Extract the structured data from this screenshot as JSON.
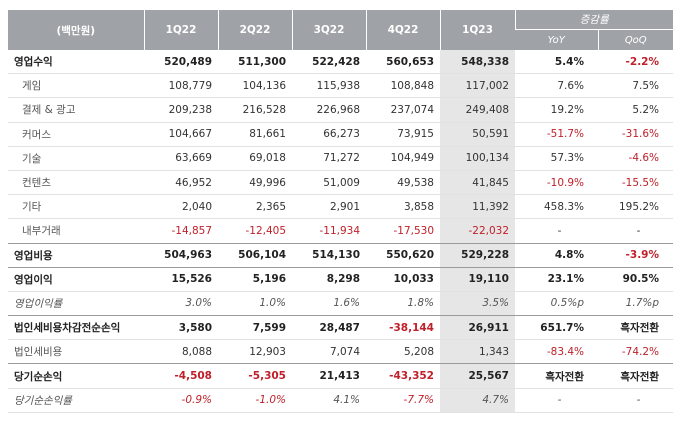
{
  "header": {
    "unit_label": "(백만원)",
    "quarters": [
      "1Q22",
      "2Q22",
      "3Q22",
      "4Q22",
      "1Q23"
    ],
    "change_label": "증감률",
    "yoy_label": "YoY",
    "qoq_label": "QoQ"
  },
  "rows": [
    {
      "name": "영업수익",
      "v": [
        "520,489",
        "511,300",
        "522,428",
        "560,653",
        "548,338"
      ],
      "yoy": "5.4%",
      "qoq": "-2.2%"
    },
    {
      "name": "게임",
      "v": [
        "108,779",
        "104,136",
        "115,938",
        "108,848",
        "117,002"
      ],
      "yoy": "7.6%",
      "qoq": "7.5%"
    },
    {
      "name": "결제 & 광고",
      "v": [
        "209,238",
        "216,528",
        "226,968",
        "237,074",
        "249,408"
      ],
      "yoy": "19.2%",
      "qoq": "5.2%"
    },
    {
      "name": "커머스",
      "v": [
        "104,667",
        "81,661",
        "66,273",
        "73,915",
        "50,591"
      ],
      "yoy": "-51.7%",
      "qoq": "-31.6%"
    },
    {
      "name": "기술",
      "v": [
        "63,669",
        "69,018",
        "71,272",
        "104,949",
        "100,134"
      ],
      "yoy": "57.3%",
      "qoq": "-4.6%"
    },
    {
      "name": "컨텐츠",
      "v": [
        "46,952",
        "49,996",
        "51,009",
        "49,538",
        "41,845"
      ],
      "yoy": "-10.9%",
      "qoq": "-15.5%"
    },
    {
      "name": "기타",
      "v": [
        "2,040",
        "2,365",
        "2,901",
        "3,858",
        "11,392"
      ],
      "yoy": "458.3%",
      "qoq": "195.2%"
    },
    {
      "name": "내부거래",
      "v": [
        "-14,857",
        "-12,405",
        "-11,934",
        "-17,530",
        "-22,032"
      ],
      "yoy": "-",
      "qoq": "-"
    },
    {
      "name": "영업비용",
      "v": [
        "504,963",
        "506,104",
        "514,130",
        "550,620",
        "529,228"
      ],
      "yoy": "4.8%",
      "qoq": "-3.9%"
    },
    {
      "name": "영업이익",
      "v": [
        "15,526",
        "5,196",
        "8,298",
        "10,033",
        "19,110"
      ],
      "yoy": "23.1%",
      "qoq": "90.5%"
    },
    {
      "name": "영업이익률",
      "v": [
        "3.0%",
        "1.0%",
        "1.6%",
        "1.8%",
        "3.5%"
      ],
      "yoy": "0.5%p",
      "qoq": "1.7%p"
    },
    {
      "name": "법인세비용차감전순손익",
      "v": [
        "3,580",
        "7,599",
        "28,487",
        "-38,144",
        "26,911"
      ],
      "yoy": "651.7%",
      "qoq": "흑자전환"
    },
    {
      "name": "법인세비용",
      "v": [
        "8,088",
        "12,903",
        "7,074",
        "5,208",
        "1,343"
      ],
      "yoy": "-83.4%",
      "qoq": "-74.2%"
    },
    {
      "name": "당기순손익",
      "v": [
        "-4,508",
        "-5,305",
        "21,413",
        "-43,352",
        "25,567"
      ],
      "yoy": "흑자전환",
      "qoq": "흑자전환"
    },
    {
      "name": "당기순손익률",
      "v": [
        "-0.9%",
        "-1.0%",
        "4.1%",
        "-7.7%",
        "4.7%"
      ],
      "yoy": "-",
      "qoq": "-"
    }
  ]
}
